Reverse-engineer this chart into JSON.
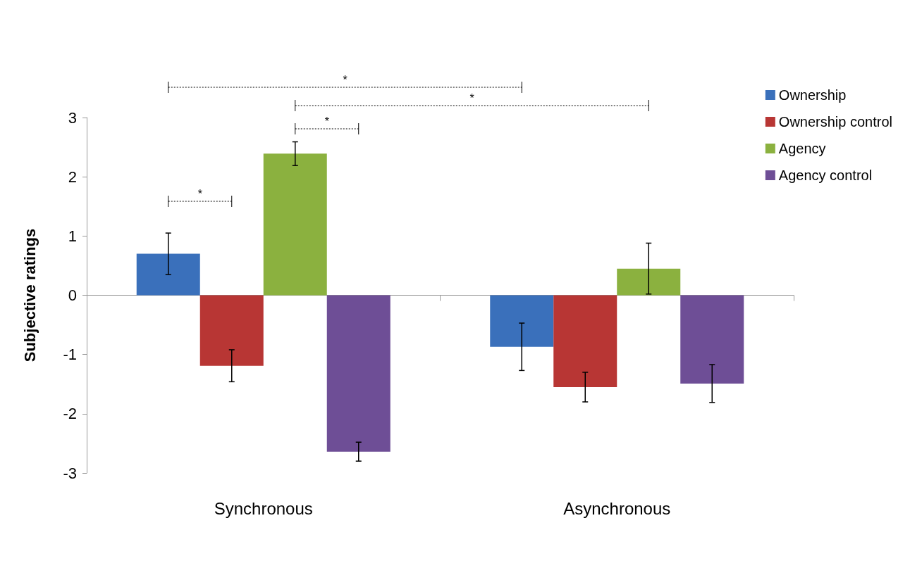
{
  "chart_data": {
    "type": "bar",
    "ylabel": "Subjective ratings",
    "categories": [
      "Synchronous",
      "Asynchronous"
    ],
    "series": [
      {
        "name": "Ownership",
        "color": "#3a70bb",
        "values": [
          0.7,
          -0.87
        ],
        "errors": [
          0.35,
          0.4
        ]
      },
      {
        "name": "Ownership control",
        "color": "#b83634",
        "values": [
          -1.19,
          -1.55
        ],
        "errors": [
          0.27,
          0.25
        ]
      },
      {
        "name": "Agency",
        "color": "#8bb13f",
        "values": [
          2.39,
          0.45
        ],
        "errors": [
          0.2,
          0.43
        ]
      },
      {
        "name": "Agency control",
        "color": "#6e4e96",
        "values": [
          -2.64,
          -1.49
        ],
        "errors": [
          0.16,
          0.32
        ]
      }
    ],
    "ylim": [
      -3,
      3
    ],
    "yticks": [
      -3,
      -2,
      -1,
      0,
      1,
      2,
      3
    ],
    "legend": "top right",
    "annotations": [
      "*",
      "*",
      "*",
      "*"
    ]
  }
}
